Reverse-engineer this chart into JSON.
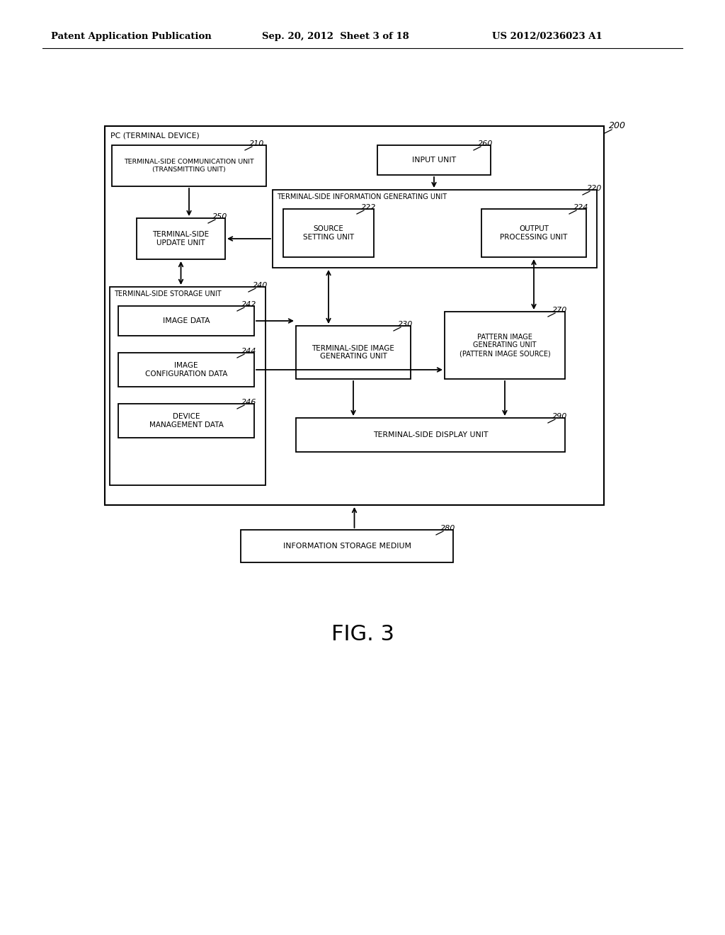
{
  "bg_color": "#ffffff",
  "header_left": "Patent Application Publication",
  "header_mid": "Sep. 20, 2012  Sheet 3 of 18",
  "header_right": "US 2012/0236023 A1",
  "fig_label": "FIG. 3",
  "outer_box_label": "PC (TERMINAL DEVICE)",
  "font_size_header": 9.5,
  "font_size_ref": 8,
  "font_size_fig": 22,
  "font_size_box": 7.5,
  "font_size_outer": 7.8
}
